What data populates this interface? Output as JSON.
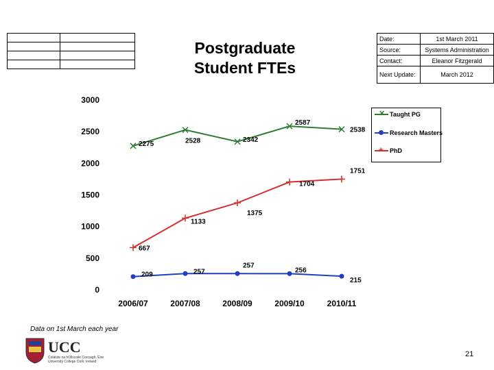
{
  "header": {
    "title_line1": "Postgraduate",
    "title_line2": "Student FTEs"
  },
  "info_table": [
    {
      "key": "Date:",
      "value": "1st March 2011"
    },
    {
      "key": "Source:",
      "value": "Systems Administration"
    },
    {
      "key": "Contact:",
      "value": "Eleanor Fitzgerald"
    },
    {
      "key": "Next Update:",
      "value": "March 2012"
    }
  ],
  "chart_data": {
    "type": "line",
    "categories": [
      "2006/07",
      "2007/08",
      "2008/09",
      "2009/10",
      "2010/11"
    ],
    "ylim": [
      0,
      3000
    ],
    "yticks": [
      0,
      500,
      1000,
      1500,
      2000,
      2500,
      3000
    ],
    "series": [
      {
        "name": "Taught PG",
        "values": [
          2275,
          2528,
          2342,
          2587,
          2538
        ],
        "labels": [
          "2275",
          "2528",
          "2342",
          "2587",
          "2538"
        ],
        "color": "#2e7d32",
        "marker": "x"
      },
      {
        "name": "Research Masters",
        "values": [
          209,
          257,
          257,
          256,
          215
        ],
        "labels": [
          "209",
          "257",
          "257",
          "256",
          "215"
        ],
        "color": "#1f3fbf",
        "marker": "circle"
      },
      {
        "name": "PhD",
        "values": [
          667,
          1133,
          1375,
          1704,
          1751
        ],
        "labels": [
          "667",
          "1133",
          "1375",
          "1704",
          "1751"
        ],
        "color": "#d32f2f",
        "marker": "plus"
      }
    ],
    "legend_position": "right",
    "grid": false
  },
  "footer": {
    "note": "Data on 1st March each year",
    "logo_text": "UCC",
    "logo_subtext1": "Coláiste na hOllscoile Corcaigh, Éire",
    "logo_subtext2": "University College Cork, Ireland",
    "page_number": "21"
  },
  "colors": {
    "taught": "#2e7d32",
    "research": "#1f3fbf",
    "phd": "#d32f2f"
  }
}
